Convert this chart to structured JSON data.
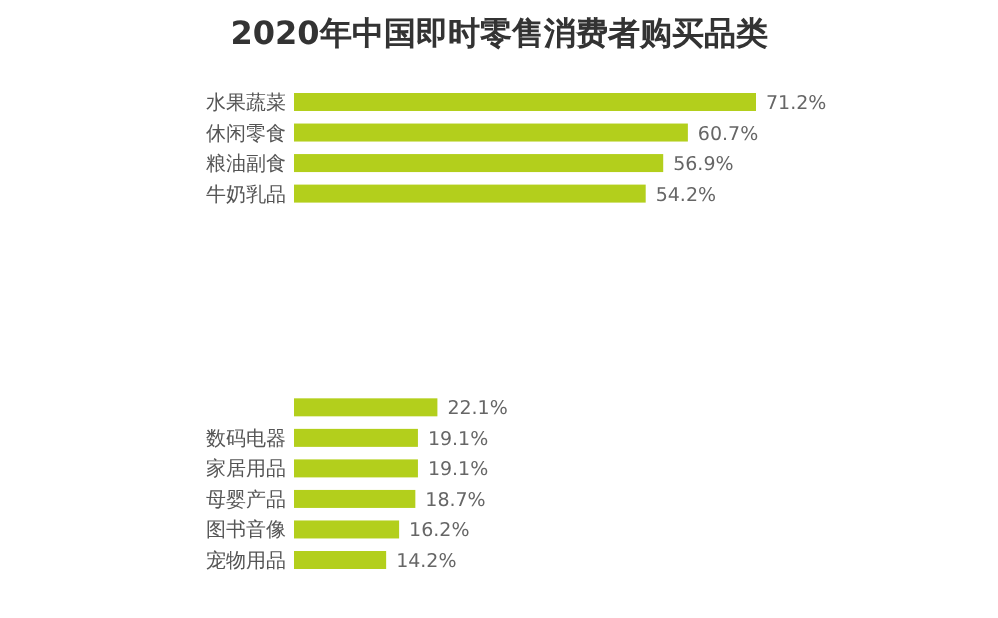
{
  "chart_data": {
    "type": "bar",
    "orientation": "horizontal",
    "title": "2020年中国即时零售消费者购买品类",
    "categories": [
      "水果蔬菜",
      "休闲零食",
      "粮油副食",
      "牛奶乳品",
      null,
      null,
      null,
      null,
      null,
      null,
      null,
      "数码电器",
      "家居用品",
      "母婴产品",
      "图书音像",
      "宠物用品"
    ],
    "values": [
      71.2,
      60.7,
      56.9,
      54.2,
      null,
      null,
      null,
      null,
      null,
      null,
      22.1,
      19.1,
      19.1,
      18.7,
      16.2,
      14.2
    ],
    "value_labels": [
      "71.2%",
      "60.7%",
      "56.9%",
      "54.2%",
      null,
      null,
      null,
      null,
      null,
      null,
      "22.1%",
      "19.1%",
      "19.1%",
      "18.7%",
      "16.2%",
      "14.2%"
    ],
    "color": "#b3cf1c"
  }
}
